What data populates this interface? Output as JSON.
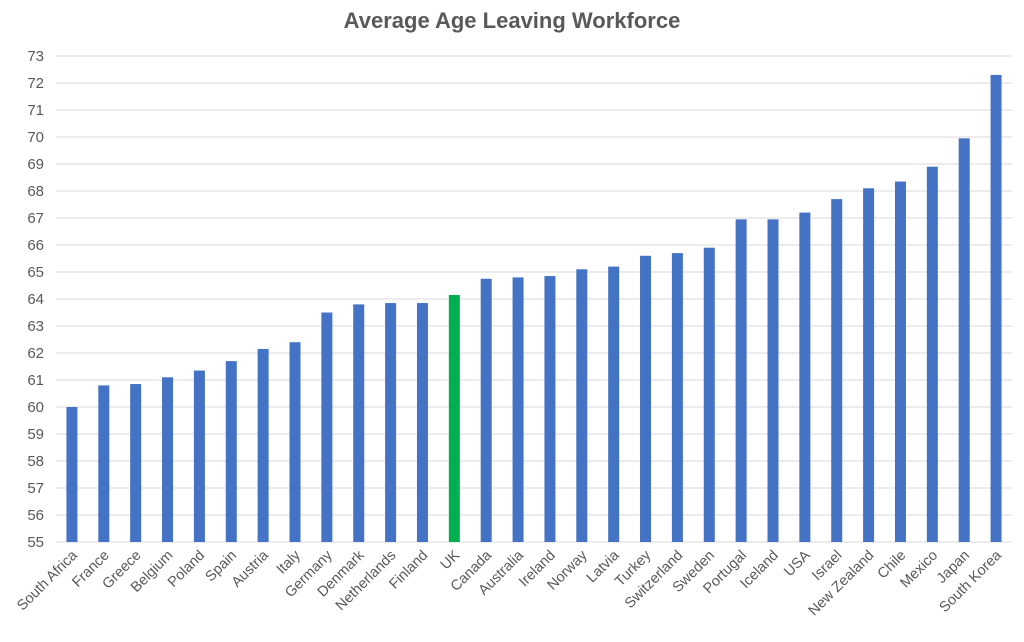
{
  "chart_data": {
    "type": "bar",
    "title": "Average Age Leaving Workforce",
    "xlabel": "",
    "ylabel": "",
    "ylim": [
      55,
      73
    ],
    "yticks": [
      55,
      56,
      57,
      58,
      59,
      60,
      61,
      62,
      63,
      64,
      65,
      66,
      67,
      68,
      69,
      70,
      71,
      72,
      73
    ],
    "grid": true,
    "legend": "none",
    "categories": [
      "South Africa",
      "France",
      "Greece",
      "Belgium",
      "Poland",
      "Spain",
      "Austria",
      "Italy",
      "Germany",
      "Denmark",
      "Netherlands",
      "Finland",
      "UK",
      "Canada",
      "Australia",
      "Ireland",
      "Norway",
      "Latvia",
      "Turkey",
      "Switzerland",
      "Sweden",
      "Portugal",
      "Iceland",
      "USA",
      "Israel",
      "New Zealand",
      "Chile",
      "Mexico",
      "Japan",
      "South Korea"
    ],
    "values": [
      60.0,
      60.8,
      60.85,
      61.1,
      61.35,
      61.7,
      62.15,
      62.4,
      63.5,
      63.8,
      63.85,
      63.85,
      64.15,
      64.75,
      64.8,
      64.85,
      65.1,
      65.2,
      65.6,
      65.7,
      65.9,
      66.95,
      66.95,
      67.2,
      67.7,
      68.1,
      68.35,
      68.9,
      69.95,
      72.3
    ],
    "colors": {
      "default_bar": "#4472c4",
      "highlight_bar": "#00b050",
      "gridline": "#d9d9d9",
      "text": "#595959"
    },
    "highlight_category": "UK"
  }
}
